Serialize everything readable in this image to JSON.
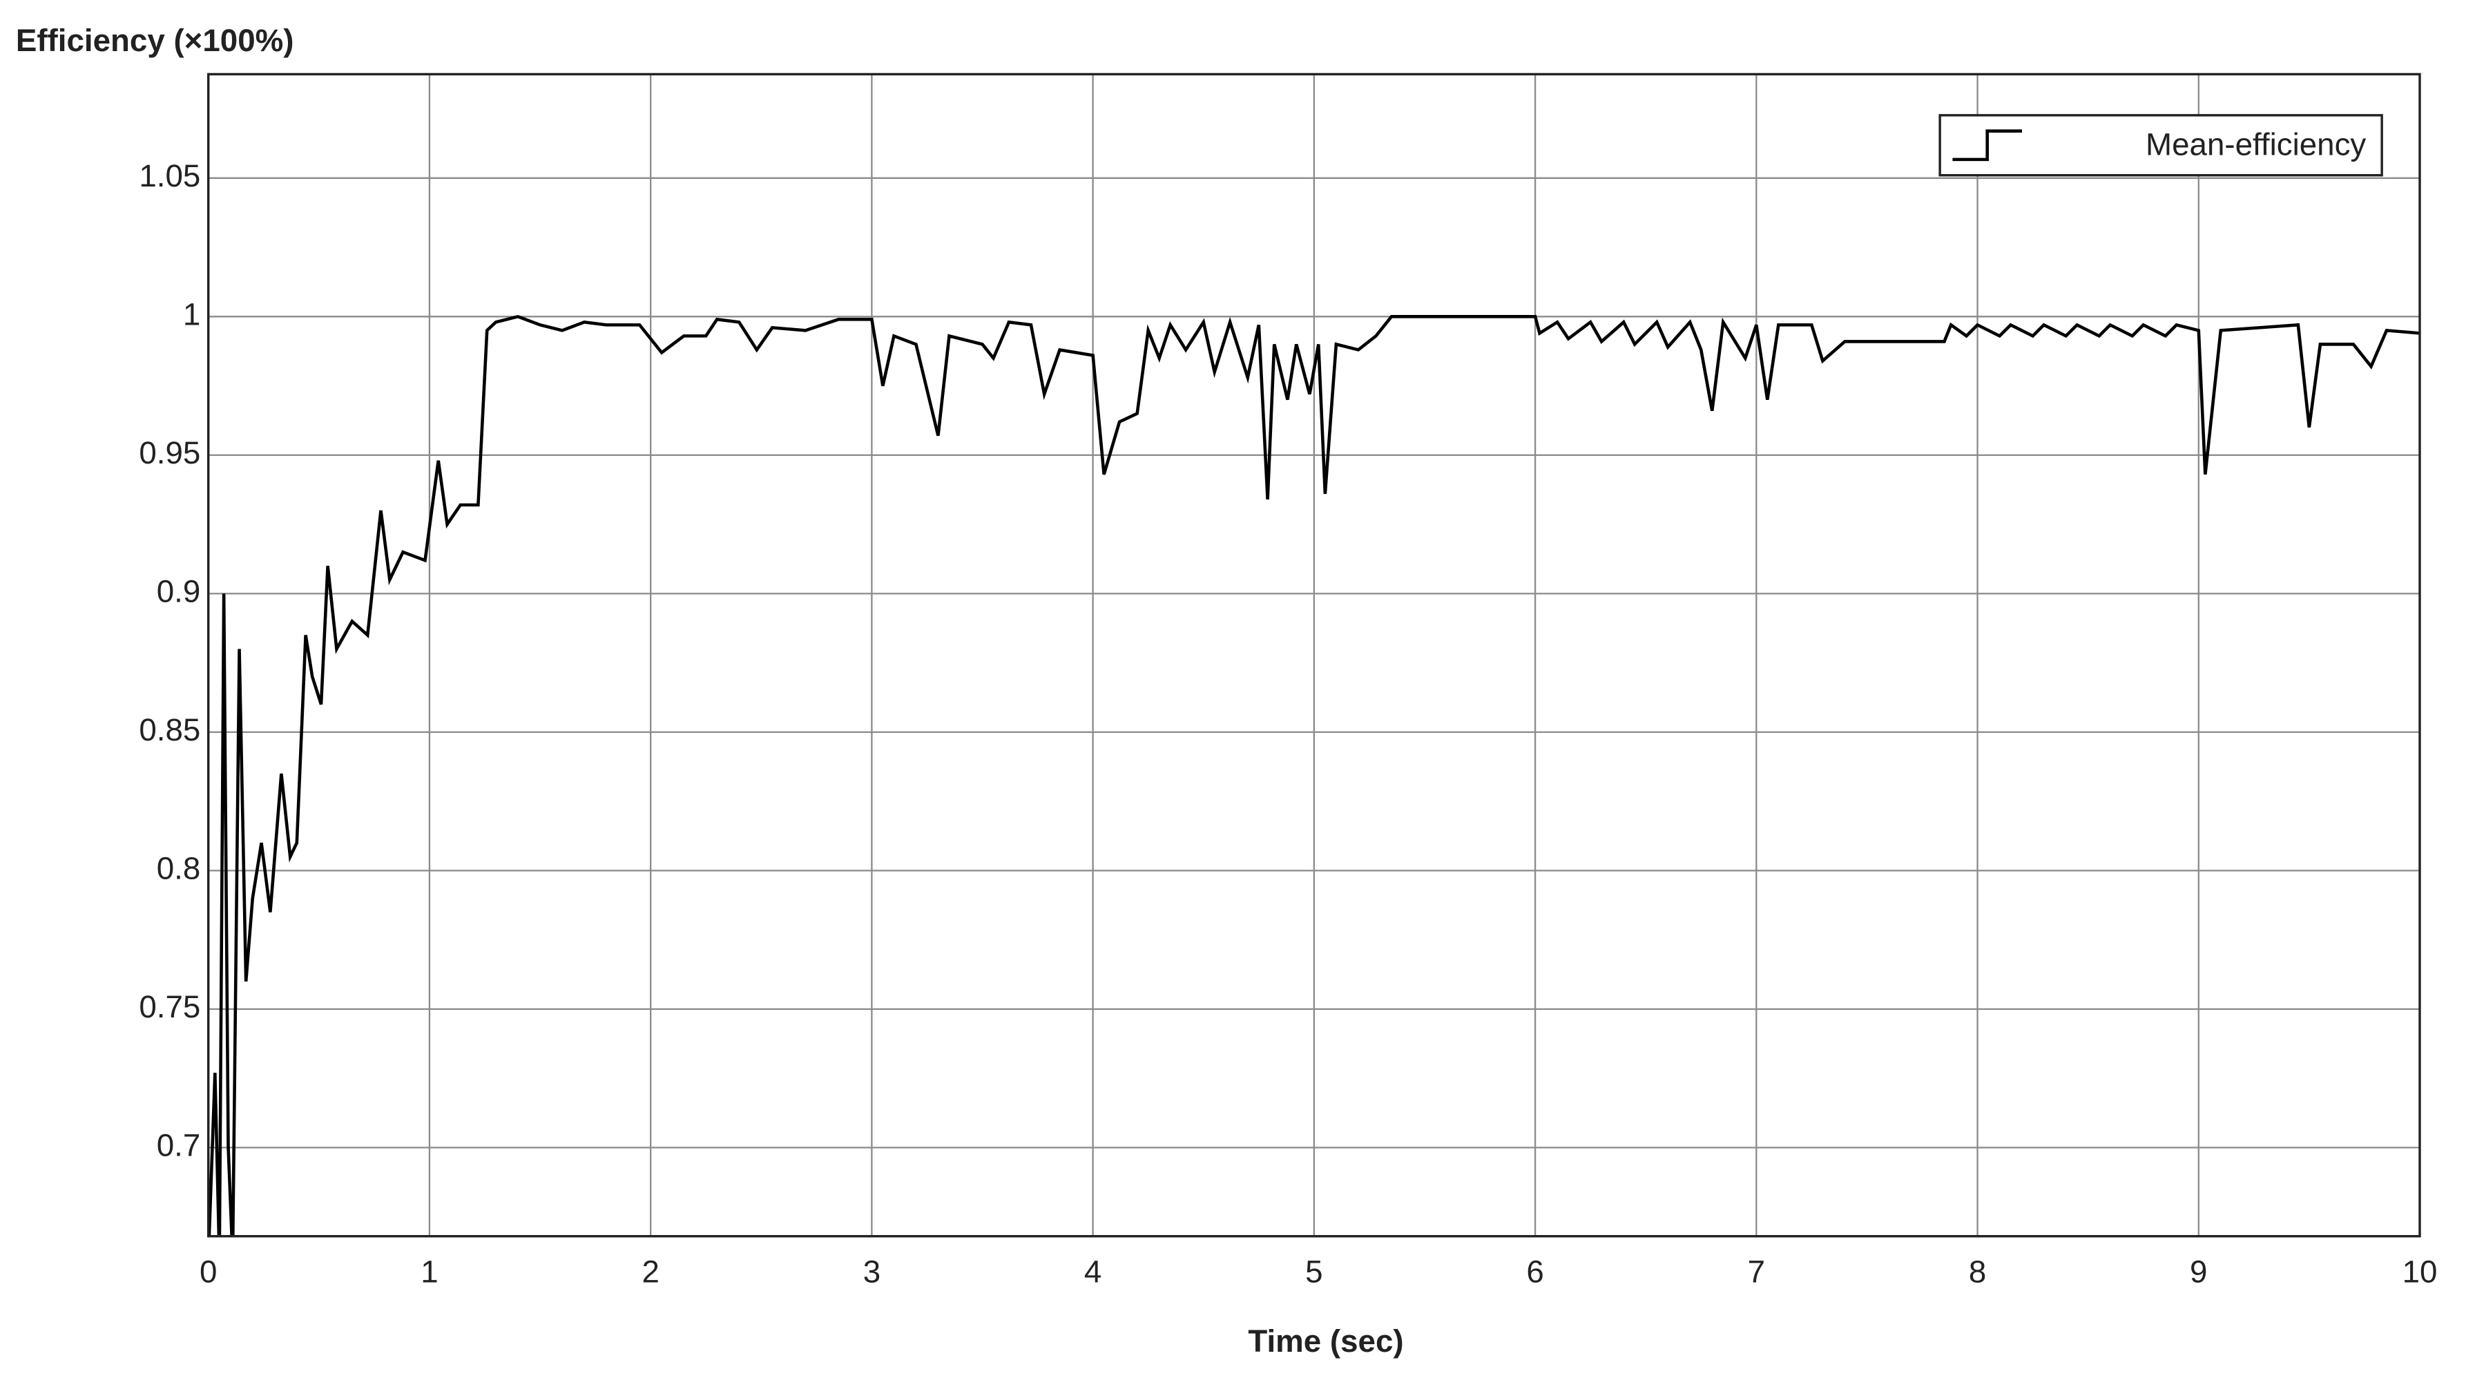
{
  "chart_data": {
    "type": "line",
    "title": "Efficiency (×100%)",
    "x_label": "Time (sec)",
    "xlim": [
      0,
      10
    ],
    "xticks": [
      0,
      1,
      2,
      3,
      4,
      5,
      6,
      7,
      8,
      9,
      10
    ],
    "ylim": [
      0.668,
      1.0875
    ],
    "yticks": [
      0.7,
      0.75,
      0.8,
      0.85,
      0.9,
      0.95,
      1,
      1.05
    ],
    "grid": true,
    "legend": "upper right",
    "series": [
      {
        "name": "Mean-efficiency",
        "color": "#000000",
        "x": [
          0,
          0.03,
          0.05,
          0.07,
          0.09,
          0.11,
          0.14,
          0.17,
          0.2,
          0.24,
          0.28,
          0.33,
          0.37,
          0.4,
          0.44,
          0.47,
          0.51,
          0.54,
          0.58,
          0.65,
          0.72,
          0.78,
          0.82,
          0.88,
          0.98,
          1.04,
          1.08,
          1.14,
          1.22,
          1.26,
          1.3,
          1.4,
          1.5,
          1.6,
          1.7,
          1.8,
          1.95,
          2.05,
          2.15,
          2.25,
          2.3,
          2.4,
          2.48,
          2.55,
          2.7,
          2.85,
          3,
          3.05,
          3.1,
          3.2,
          3.3,
          3.35,
          3.5,
          3.55,
          3.62,
          3.72,
          3.78,
          3.85,
          4,
          4.05,
          4.12,
          4.2,
          4.25,
          4.3,
          4.35,
          4.42,
          4.5,
          4.55,
          4.62,
          4.7,
          4.75,
          4.79,
          4.82,
          4.88,
          4.92,
          4.98,
          5.02,
          5.05,
          5.1,
          5.2,
          5.28,
          5.35,
          6,
          6.02,
          6.1,
          6.15,
          6.25,
          6.3,
          6.4,
          6.45,
          6.55,
          6.6,
          6.7,
          6.75,
          6.8,
          6.85,
          6.95,
          7,
          7.05,
          7.1,
          7.25,
          7.3,
          7.4,
          7.85,
          7.88,
          7.95,
          8.0,
          8.1,
          8.15,
          8.25,
          8.3,
          8.4,
          8.45,
          8.55,
          8.6,
          8.7,
          8.75,
          8.85,
          8.9,
          9.0,
          9.03,
          9.1,
          9.45,
          9.5,
          9.55,
          9.7,
          9.78,
          9.85,
          10
        ],
        "values": [
          0.66,
          0.727,
          0.66,
          0.9,
          0.7,
          0.66,
          0.88,
          0.76,
          0.79,
          0.81,
          0.785,
          0.835,
          0.805,
          0.81,
          0.885,
          0.87,
          0.86,
          0.91,
          0.88,
          0.89,
          0.885,
          0.93,
          0.905,
          0.915,
          0.912,
          0.948,
          0.925,
          0.932,
          0.932,
          0.995,
          0.998,
          1.0,
          0.997,
          0.995,
          0.998,
          0.997,
          0.997,
          0.987,
          0.993,
          0.993,
          0.999,
          0.998,
          0.988,
          0.996,
          0.995,
          0.999,
          0.999,
          0.975,
          0.993,
          0.99,
          0.957,
          0.993,
          0.99,
          0.985,
          0.998,
          0.997,
          0.972,
          0.988,
          0.986,
          0.943,
          0.962,
          0.965,
          0.995,
          0.985,
          0.997,
          0.988,
          0.998,
          0.98,
          0.998,
          0.978,
          0.997,
          0.934,
          0.99,
          0.97,
          0.99,
          0.972,
          0.99,
          0.936,
          0.99,
          0.988,
          0.993,
          1.0,
          1.0,
          0.994,
          0.998,
          0.992,
          0.998,
          0.991,
          0.998,
          0.99,
          0.998,
          0.989,
          0.998,
          0.988,
          0.966,
          0.998,
          0.985,
          0.997,
          0.97,
          0.997,
          0.997,
          0.984,
          0.991,
          0.991,
          0.997,
          0.993,
          0.997,
          0.993,
          0.997,
          0.993,
          0.997,
          0.993,
          0.997,
          0.993,
          0.997,
          0.993,
          0.997,
          0.993,
          0.997,
          0.995,
          0.943,
          0.995,
          0.997,
          0.96,
          0.99,
          0.99,
          0.982,
          0.995,
          0.994
        ]
      }
    ]
  }
}
